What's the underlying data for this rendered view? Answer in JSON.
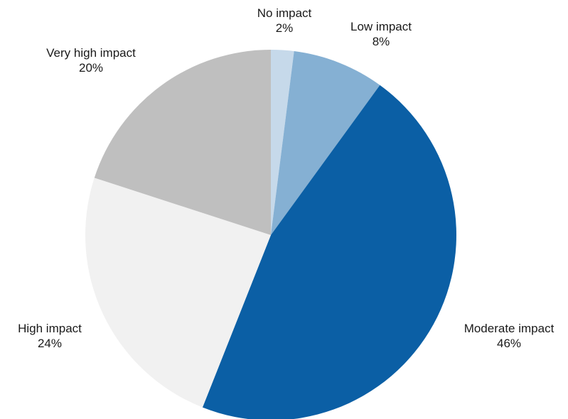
{
  "chart_data": {
    "type": "pie",
    "title": "",
    "start": "12 o'clock",
    "direction": "clockwise",
    "slices": [
      {
        "label": "No impact",
        "value": 2,
        "value_label": "2%",
        "color": "#c6d9ea"
      },
      {
        "label": "Low impact",
        "value": 8,
        "value_label": "8%",
        "color": "#85b0d3"
      },
      {
        "label": "Moderate impact",
        "value": 46,
        "value_label": "46%",
        "color": "#0b5fa5"
      },
      {
        "label": "High impact",
        "value": 24,
        "value_label": "24%",
        "color": "#f1f1f1"
      },
      {
        "label": "Very high impact",
        "value": 20,
        "value_label": "20%",
        "color": "#bfbfbf"
      }
    ]
  }
}
